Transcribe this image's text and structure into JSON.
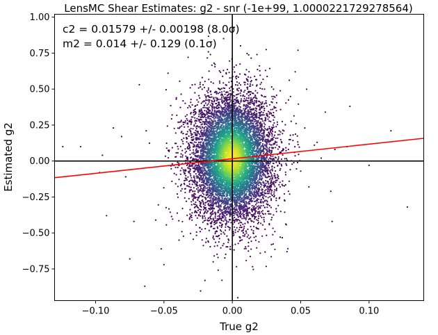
{
  "chart_data": {
    "type": "scatter",
    "title": "LensMC Shear Estimates: g2  - snr (-1e+99, 1.0000221729278564)",
    "xlabel": "True g2",
    "ylabel": "Estimated g2",
    "xlim": [
      -0.13,
      0.14
    ],
    "ylim": [
      -0.97,
      1.02
    ],
    "xticks": [
      -0.1,
      -0.05,
      0.0,
      0.05,
      0.1
    ],
    "xtick_labels": [
      "−0.10",
      "−0.05",
      "0.00",
      "0.05",
      "0.10"
    ],
    "yticks": [
      -0.75,
      -0.5,
      -0.25,
      0.0,
      0.25,
      0.5,
      0.75,
      1.0
    ],
    "ytick_labels": [
      "−0.75",
      "−0.50",
      "−0.25",
      "0.00",
      "0.25",
      "0.50",
      "0.75",
      "1.00"
    ],
    "annotations": [
      "c2 = 0.01579 +/- 0.00198 (8.0σ)",
      "m2 = 0.014 +/- 0.129 (0.1σ)"
    ],
    "fit_line": {
      "slope": 1.014,
      "intercept": 0.01579,
      "color": "#ff0000"
    },
    "reference_lines": {
      "x": 0.0,
      "y": 0.0,
      "color": "#000000"
    },
    "scatter_distribution": {
      "x_center": 0.0,
      "x_std": 0.015,
      "y_center": 0.02,
      "y_std": 0.22,
      "colormap": "viridis"
    },
    "points": [
      [
        -0.124,
        0.1
      ],
      [
        -0.111,
        0.1
      ],
      [
        -0.097,
        -0.08
      ],
      [
        -0.095,
        0.04
      ],
      [
        -0.092,
        -0.38
      ],
      [
        -0.087,
        0.23
      ],
      [
        -0.081,
        0.17
      ],
      [
        -0.078,
        -0.11
      ],
      [
        -0.075,
        -0.68
      ],
      [
        -0.072,
        -0.42
      ],
      [
        -0.068,
        0.53
      ],
      [
        -0.064,
        -0.87
      ],
      [
        -0.063,
        0.21
      ],
      [
        -0.056,
        -0.41
      ],
      [
        -0.052,
        -0.61
      ],
      [
        -0.05,
        -0.72
      ],
      [
        -0.047,
        0.61
      ],
      [
        -0.044,
        0.32
      ],
      [
        -0.041,
        0.43
      ],
      [
        -0.039,
        -0.55
      ],
      [
        -0.036,
        0.12
      ],
      [
        -0.02,
        -0.83
      ],
      [
        -0.016,
        0.74
      ],
      [
        0.004,
        -0.95
      ],
      [
        0.006,
        0.8
      ],
      [
        0.018,
        0.74
      ],
      [
        0.04,
        -0.63
      ],
      [
        0.041,
        -0.21
      ],
      [
        0.046,
        0.62
      ],
      [
        0.048,
        0.77
      ],
      [
        0.05,
        -0.07
      ],
      [
        0.053,
        0.23
      ],
      [
        0.056,
        -0.18
      ],
      [
        0.06,
        0.11
      ],
      [
        0.062,
        0.13
      ],
      [
        0.065,
        0.02
      ],
      [
        0.068,
        0.34
      ],
      [
        0.072,
        -0.21
      ],
      [
        0.073,
        -0.42
      ],
      [
        0.075,
        0.08
      ],
      [
        0.084,
        0.1
      ],
      [
        0.086,
        0.38
      ],
      [
        0.1,
        -0.03
      ],
      [
        0.116,
        0.21
      ],
      [
        0.128,
        -0.32
      ]
    ]
  }
}
